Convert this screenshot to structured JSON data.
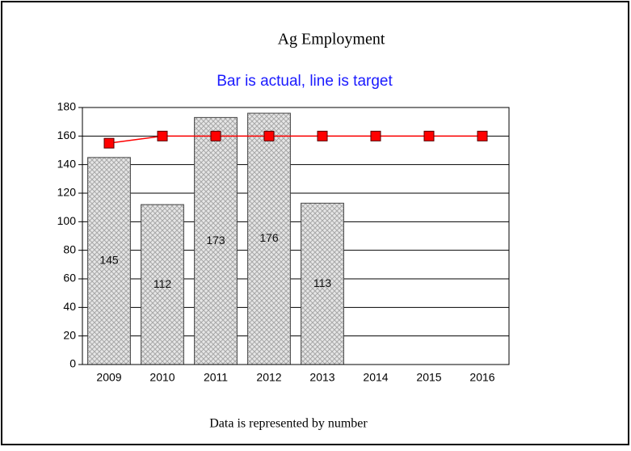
{
  "chart_data": {
    "type": "bar",
    "title": "Ag Employment",
    "subtitle": "Bar is actual, line is target",
    "footer": "Data is represented by number",
    "categories": [
      "2009",
      "2010",
      "2011",
      "2012",
      "2013",
      "2014",
      "2015",
      "2016"
    ],
    "series": [
      {
        "type": "bar",
        "color": "#c8c8c8",
        "values": [
          145,
          112,
          173,
          176,
          113,
          null,
          null,
          null
        ]
      },
      {
        "type": "line",
        "color": "#ff0000",
        "values": [
          155,
          160,
          160,
          160,
          160,
          160,
          160,
          160
        ]
      }
    ],
    "ylim": [
      0,
      180
    ],
    "yticks": [
      0,
      20,
      40,
      60,
      80,
      100,
      120,
      140,
      160,
      180
    ],
    "grid": true,
    "data_labels": true
  }
}
